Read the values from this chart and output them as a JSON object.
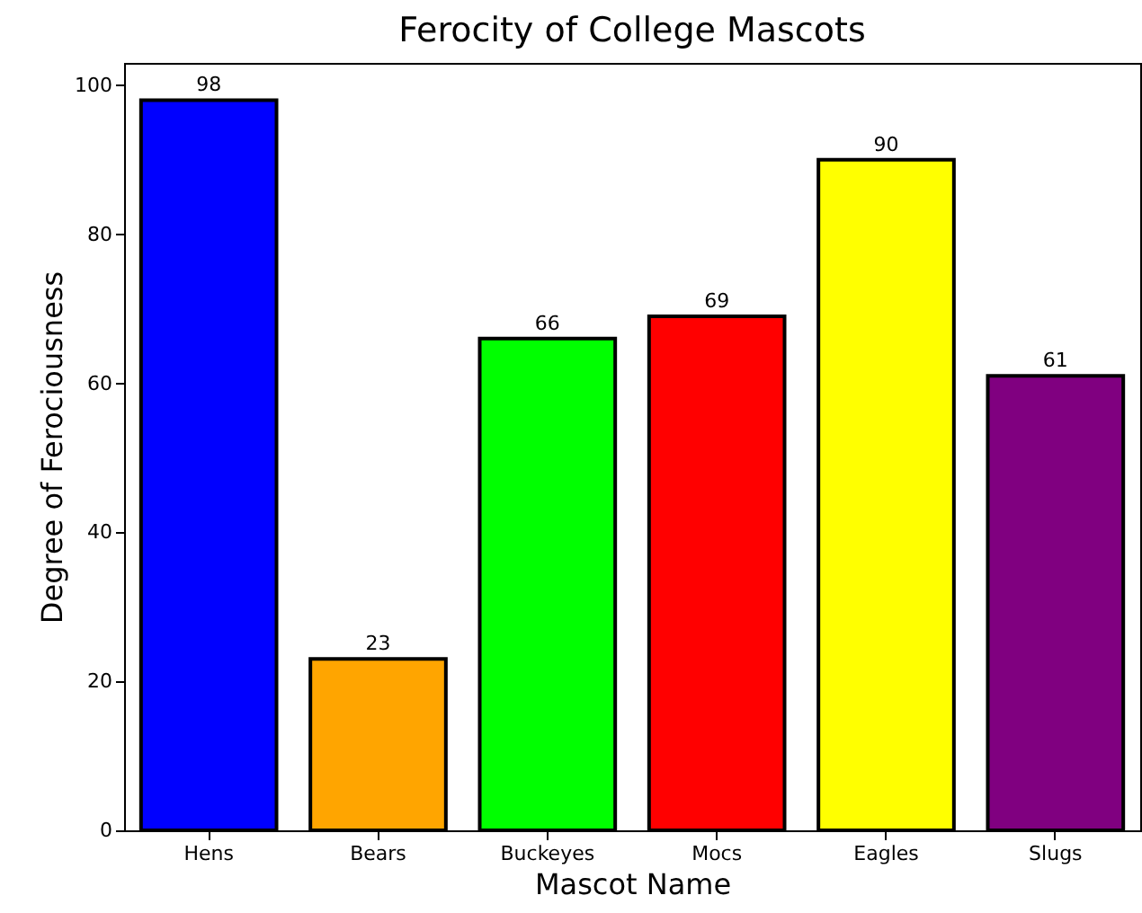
{
  "chart_data": {
    "type": "bar",
    "title": "Ferocity of College Mascots",
    "xlabel": "Mascot Name",
    "ylabel": "Degree of Ferociousness",
    "categories": [
      "Hens",
      "Bears",
      "Buckeyes",
      "Mocs",
      "Eagles",
      "Slugs"
    ],
    "values": [
      98,
      23,
      66,
      69,
      90,
      61
    ],
    "colors": [
      "#0000ff",
      "#ffa500",
      "#00ff00",
      "#ff0000",
      "#ffff00",
      "#800080"
    ],
    "ylim": [
      0,
      103
    ],
    "yticks": [
      0,
      20,
      40,
      60,
      80,
      100
    ],
    "data_labels": true
  }
}
